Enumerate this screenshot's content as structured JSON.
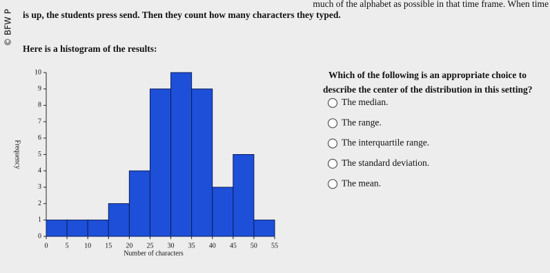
{
  "header": {
    "copyright": "© BFW P",
    "intro_line_1": "much of the alphabet as possible in that time frame. When time",
    "intro_line_2": "is up, the students press send. Then they count how many characters they typed.",
    "intro_line_3": "Here is a histogram of the results:"
  },
  "chart_data": {
    "type": "histogram",
    "x_label": "Number of characters",
    "y_label": "Frequency",
    "bins": [
      0,
      5,
      10,
      15,
      20,
      25,
      30,
      35,
      40,
      45,
      50,
      55
    ],
    "values": [
      1,
      1,
      1,
      2,
      4,
      9,
      10,
      9,
      3,
      5,
      1
    ],
    "color": "#1d4fd8",
    "xlim": [
      0,
      55
    ],
    "xticks": [
      0,
      5,
      10,
      15,
      20,
      25,
      30,
      35,
      40,
      45,
      50,
      55
    ],
    "ylim": [
      0,
      10
    ],
    "yticks": [
      0,
      1,
      2,
      3,
      4,
      5,
      6,
      7,
      8,
      9,
      10
    ],
    "grid": false
  },
  "question": {
    "text_line_1": "Which of the following is an appropriate choice to",
    "text_line_2": "describe the center of the distribution in this setting?",
    "options": [
      "The median.",
      "The range.",
      "The interquartile range.",
      "The standard deviation.",
      "The mean."
    ]
  }
}
